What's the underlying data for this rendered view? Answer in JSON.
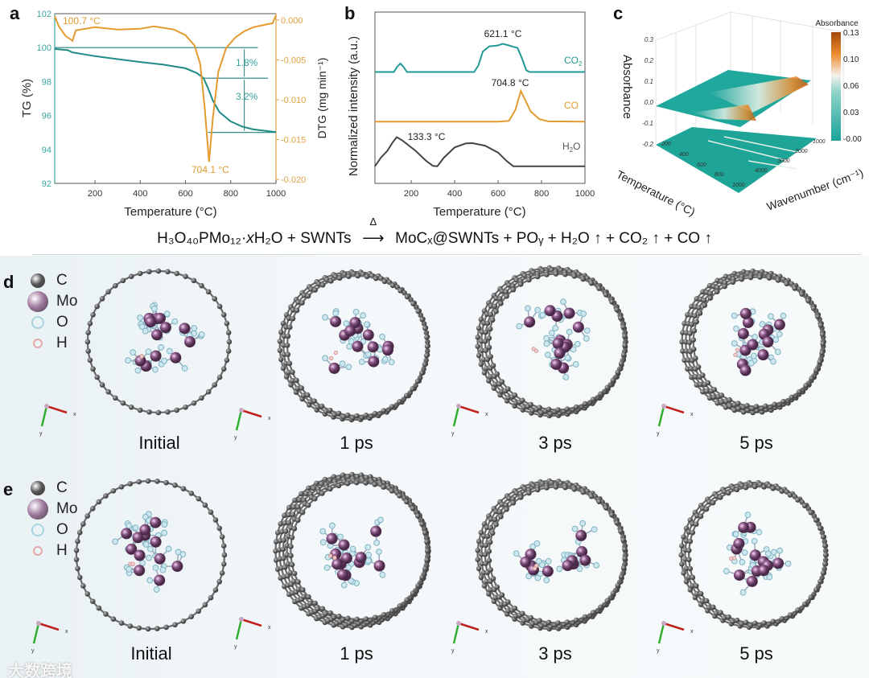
{
  "panels": {
    "a": "a",
    "b": "b",
    "c": "c",
    "d": "d",
    "e": "e"
  },
  "chart_data": [
    {
      "panel": "a",
      "type": "line",
      "xlabel": "Temperature (°C)",
      "ylabel": "TG (%)",
      "y2label": "DTG (mg min⁻¹)",
      "xlim": [
        22,
        1000
      ],
      "ylim": [
        92,
        102
      ],
      "y2lim": [
        -0.0205,
        0.0008
      ],
      "xticks": [
        200,
        400,
        600,
        800,
        1000
      ],
      "yticks": [
        92,
        94,
        96,
        98,
        100,
        102
      ],
      "y2ticks": [
        "0.000",
        "-0.005",
        "-0.010",
        "-0.015",
        "-0.020"
      ],
      "y2tick_values": [
        0,
        -0.005,
        -0.01,
        -0.015,
        -0.02
      ],
      "colors": {
        "tg": "#1f8a86",
        "dtg": "#e39a2e",
        "axis_left": "#3aa39e",
        "axis_right": "#e0a040"
      },
      "series": [
        {
          "name": "TG",
          "axis": "left",
          "points": [
            [
              22,
              99.92
            ],
            [
              80,
              99.85
            ],
            [
              100,
              99.72
            ],
            [
              200,
              99.5
            ],
            [
              300,
              99.32
            ],
            [
              400,
              99.15
            ],
            [
              500,
              99.0
            ],
            [
              600,
              98.78
            ],
            [
              650,
              98.5
            ],
            [
              680,
              98.2
            ],
            [
              700,
              97.6
            ],
            [
              720,
              96.9
            ],
            [
              750,
              96.2
            ],
            [
              800,
              95.65
            ],
            [
              850,
              95.35
            ],
            [
              900,
              95.18
            ],
            [
              1000,
              95.02
            ]
          ]
        },
        {
          "name": "DTG",
          "axis": "right",
          "points": [
            [
              22,
              0.0005
            ],
            [
              40,
              -0.0008
            ],
            [
              70,
              -0.002
            ],
            [
              100.7,
              -0.0026
            ],
            [
              115,
              -0.0013
            ],
            [
              200,
              -0.0009
            ],
            [
              300,
              -0.0012
            ],
            [
              400,
              -0.0011
            ],
            [
              460,
              -0.0008
            ],
            [
              550,
              -0.0012
            ],
            [
              600,
              -0.0019
            ],
            [
              640,
              -0.0032
            ],
            [
              665,
              -0.0055
            ],
            [
              685,
              -0.011
            ],
            [
              704.1,
              -0.0178
            ],
            [
              720,
              -0.0125
            ],
            [
              745,
              -0.0065
            ],
            [
              780,
              -0.0035
            ],
            [
              820,
              -0.0022
            ],
            [
              860,
              -0.0014
            ],
            [
              900,
              -0.0009
            ],
            [
              950,
              -0.0006
            ],
            [
              985,
              -0.0004
            ],
            [
              1000,
              0.0006
            ]
          ]
        }
      ],
      "annotations": {
        "peak1": "100.7 °C",
        "peak2": "704.1 °C",
        "loss1": "1.8%",
        "loss2": "3.2%"
      },
      "reference_lines": [
        {
          "y": 100,
          "x": [
            22,
            920
          ]
        },
        {
          "y": 98.2,
          "x": [
            680,
            965
          ]
        },
        {
          "y": 95.0,
          "x": [
            700,
            1000
          ]
        }
      ]
    },
    {
      "panel": "b",
      "type": "line",
      "xlabel": "Temperature (°C)",
      "ylabel": "Normalized intensity (a.u.)",
      "xlim": [
        33,
        1000
      ],
      "ylim": [
        0,
        10
      ],
      "xticks": [
        200,
        400,
        600,
        800,
        1000
      ],
      "series": [
        {
          "name": "CO2",
          "label_main": "CO",
          "label_sub": "2",
          "color": "#1f9a93",
          "points": [
            [
              33,
              6.5
            ],
            [
              120,
              6.5
            ],
            [
              135,
              6.8
            ],
            [
              150,
              7.0
            ],
            [
              165,
              6.8
            ],
            [
              180,
              6.5
            ],
            [
              490,
              6.5
            ],
            [
              510,
              6.9
            ],
            [
              530,
              7.7
            ],
            [
              560,
              8.0
            ],
            [
              600,
              8.05
            ],
            [
              621.1,
              8.15
            ],
            [
              650,
              8.05
            ],
            [
              690,
              7.9
            ],
            [
              710,
              7.3
            ],
            [
              730,
              6.6
            ],
            [
              745,
              6.5
            ],
            [
              1000,
              6.5
            ]
          ]
        },
        {
          "name": "CO",
          "label_main": "CO",
          "label_sub": "",
          "color": "#e39a2e",
          "points": [
            [
              33,
              3.6
            ],
            [
              600,
              3.6
            ],
            [
              650,
              3.65
            ],
            [
              680,
              4.3
            ],
            [
              704.8,
              5.4
            ],
            [
              720,
              5.0
            ],
            [
              750,
              4.2
            ],
            [
              790,
              3.75
            ],
            [
              830,
              3.62
            ],
            [
              1000,
              3.6
            ]
          ]
        },
        {
          "name": "H2O",
          "label_main": "H",
          "label_sub": "2",
          "label_tail": "O",
          "color": "#444444",
          "points": [
            [
              33,
              1.0
            ],
            [
              60,
              1.5
            ],
            [
              90,
              1.9
            ],
            [
              115,
              2.4
            ],
            [
              133.3,
              2.7
            ],
            [
              160,
              2.5
            ],
            [
              220,
              1.9
            ],
            [
              270,
              1.3
            ],
            [
              300,
              1.02
            ],
            [
              320,
              1.0
            ],
            [
              350,
              1.5
            ],
            [
              400,
              2.1
            ],
            [
              450,
              2.33
            ],
            [
              480,
              2.35
            ],
            [
              540,
              2.2
            ],
            [
              600,
              1.8
            ],
            [
              640,
              1.3
            ],
            [
              670,
              1.0
            ],
            [
              1000,
              1.0
            ]
          ]
        }
      ],
      "annotations": {
        "co2_peak": "621.1 °C",
        "co_peak": "704.8 °C",
        "h2o_peak": "133.3 °C"
      }
    },
    {
      "panel": "c",
      "type": "heatmap",
      "zlabel": "Absorbance",
      "xlabel": "Temperature (°C)",
      "ylabel": "Wavenumber (cm⁻¹)",
      "zticks": [
        "0.3",
        "0.2",
        "0.1",
        "0.0",
        "-0.1",
        "-0.2"
      ],
      "temp_ticks": [
        "200",
        "400",
        "600",
        "800",
        "1000"
      ],
      "wave_ticks": [
        "1000",
        "2000",
        "3000",
        "4000"
      ],
      "colorbar": {
        "title": "Absorbance",
        "ticks": [
          "0.13",
          "0.10",
          "0.06",
          "0.03",
          "-0.00"
        ],
        "low": "#1aa39a",
        "mid": "#f4f2ea",
        "high": "#c05a10"
      }
    }
  ],
  "equation": {
    "left": "H₃O₄₀PMo₁₂·",
    "x": "x",
    "left2": "H₂O + SWNTs",
    "arrow_label": "Δ",
    "right": "MoCₓ@SWNTs + POᵧ + H₂O ↑ + CO₂ ↑ + CO ↑"
  },
  "legend": [
    {
      "label": "C",
      "color": "#555555"
    },
    {
      "label": "Mo",
      "color": "#a07aa0"
    },
    {
      "label": "O",
      "color": "#a9d3e0"
    },
    {
      "label": "H",
      "color": "#e5a9a9"
    }
  ],
  "snapshots_d": [
    "Initial",
    "1 ps",
    "3 ps",
    "5 ps"
  ],
  "snapshots_e": [
    "Initial",
    "1 ps",
    "3 ps",
    "5 ps"
  ],
  "axes_triad": {
    "x": "x",
    "y": "y"
  },
  "watermark": "大数跨境"
}
